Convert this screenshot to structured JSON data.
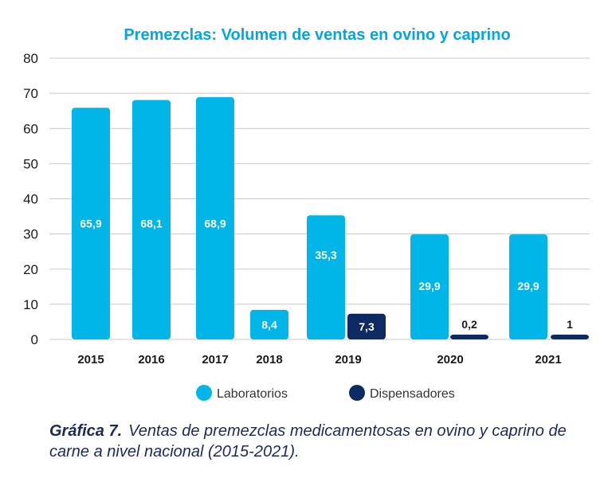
{
  "colors": {
    "laboratorios": "#00b5e8",
    "dispensadores": "#0d2a63",
    "title": "#00a7e0",
    "grid": "#c8c8c8",
    "text": "#1a1a1a"
  },
  "chart_data": {
    "type": "bar",
    "title": "Premezclas: Volumen de ventas en ovino y caprino",
    "xlabel": "",
    "ylabel": "",
    "ylim": [
      0,
      80
    ],
    "yticks": [
      0,
      10,
      20,
      30,
      40,
      50,
      60,
      70,
      80
    ],
    "grid": true,
    "legend_position": "bottom",
    "categories": [
      "2015",
      "2016",
      "2017",
      "2018",
      "2019",
      "2020",
      "2021"
    ],
    "series": [
      {
        "name": "Laboratorios",
        "values": [
          65.9,
          68.1,
          68.9,
          8.4,
          35.3,
          29.9,
          29.9
        ],
        "labels": [
          "65,9",
          "68,1",
          "68,9",
          "8,4",
          "35,3",
          "29,9",
          "29,9"
        ]
      },
      {
        "name": "Dispensadores",
        "values": [
          null,
          null,
          null,
          null,
          7.3,
          0.2,
          1
        ],
        "labels": [
          null,
          null,
          null,
          null,
          "7,3",
          "0,2",
          "1"
        ]
      }
    ]
  },
  "caption": {
    "number": "Gráfica 7.",
    "text": "Ventas de premezclas medicamentosas en ovino y caprino de carne a nivel nacional (2015-2021)."
  }
}
